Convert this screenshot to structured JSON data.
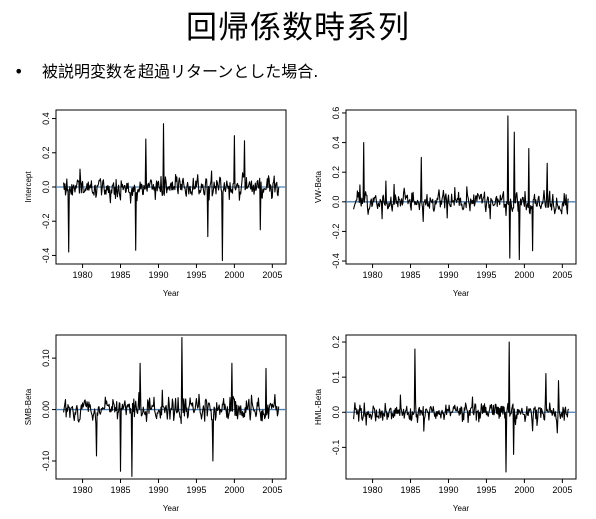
{
  "slide": {
    "title": "回帰係数時系列",
    "bullet_symbol": "•",
    "bullet_text": "被説明変数を超過リターンとした場合."
  },
  "chart_data": [
    {
      "type": "line",
      "ylabel": "Intercept",
      "xlabel": "Year",
      "x_range": [
        1977.5,
        2005.8
      ],
      "xlim": [
        1976.5,
        2006.8
      ],
      "ylim": [
        -0.45,
        0.45
      ],
      "xticks": [
        1980,
        1985,
        1990,
        1995,
        2000,
        2005
      ],
      "yticks": [
        -0.4,
        -0.2,
        0.0,
        0.2,
        0.4
      ],
      "ytick_labels": [
        "-0.4",
        "-0.2",
        "0.0",
        "0.2",
        "0.4"
      ],
      "zero_line": 0.0,
      "zero_line_color": "#4f7fb0",
      "typical_amplitude": 0.09,
      "seed": 11,
      "spikes": [
        {
          "x": 1978.2,
          "y": -0.38
        },
        {
          "x": 1987.0,
          "y": -0.37
        },
        {
          "x": 1988.3,
          "y": 0.28
        },
        {
          "x": 1990.7,
          "y": 0.37
        },
        {
          "x": 1996.5,
          "y": -0.29
        },
        {
          "x": 1998.4,
          "y": -0.43
        },
        {
          "x": 2000.0,
          "y": 0.3
        },
        {
          "x": 2001.3,
          "y": 0.27
        },
        {
          "x": 2003.4,
          "y": -0.25
        }
      ]
    },
    {
      "type": "line",
      "ylabel": "VW-Beta",
      "xlabel": "Year",
      "x_range": [
        1977.5,
        2005.8
      ],
      "xlim": [
        1976.5,
        2006.8
      ],
      "ylim": [
        -0.42,
        0.62
      ],
      "xticks": [
        1980,
        1985,
        1990,
        1995,
        2000,
        2005
      ],
      "yticks": [
        -0.4,
        -0.2,
        0.0,
        0.2,
        0.4,
        0.6
      ],
      "ytick_labels": [
        "-0.4",
        "-0.2",
        "0.0",
        "0.2",
        "0.4",
        "0.6"
      ],
      "zero_line": 0.0,
      "zero_line_color": "#4f7fb0",
      "typical_amplitude": 0.1,
      "seed": 23,
      "spikes": [
        {
          "x": 1978.8,
          "y": 0.4
        },
        {
          "x": 1986.4,
          "y": 0.3
        },
        {
          "x": 1997.8,
          "y": 0.58
        },
        {
          "x": 1998.1,
          "y": -0.38
        },
        {
          "x": 1998.7,
          "y": 0.47
        },
        {
          "x": 1999.3,
          "y": -0.39
        },
        {
          "x": 2000.6,
          "y": 0.36
        },
        {
          "x": 2001.1,
          "y": -0.33
        },
        {
          "x": 2003.0,
          "y": 0.26
        }
      ]
    },
    {
      "type": "line",
      "ylabel": "SMB-Beta",
      "xlabel": "Year",
      "x_range": [
        1977.5,
        2005.8
      ],
      "xlim": [
        1976.5,
        2006.8
      ],
      "ylim": [
        -0.135,
        0.145
      ],
      "xticks": [
        1980,
        1985,
        1990,
        1995,
        2000,
        2005
      ],
      "yticks": [
        -0.1,
        0.0,
        0.1
      ],
      "ytick_labels": [
        "-0.10",
        "0.00",
        "0.10"
      ],
      "zero_line": 0.0,
      "zero_line_color": "#4f7fb0",
      "typical_amplitude": 0.035,
      "seed": 37,
      "spikes": [
        {
          "x": 1981.8,
          "y": -0.09
        },
        {
          "x": 1985.0,
          "y": -0.12
        },
        {
          "x": 1986.5,
          "y": -0.13
        },
        {
          "x": 1987.6,
          "y": 0.09
        },
        {
          "x": 1993.1,
          "y": 0.14
        },
        {
          "x": 1997.2,
          "y": -0.1
        },
        {
          "x": 1999.7,
          "y": 0.09
        },
        {
          "x": 2004.2,
          "y": 0.08
        }
      ]
    },
    {
      "type": "line",
      "ylabel": "HML-Beta",
      "xlabel": "Year",
      "x_range": [
        1977.5,
        2005.8
      ],
      "xlim": [
        1976.5,
        2006.8
      ],
      "ylim": [
        -0.19,
        0.22
      ],
      "xticks": [
        1980,
        1985,
        1990,
        1995,
        2000,
        2005
      ],
      "yticks": [
        -0.1,
        0.0,
        0.1,
        0.2
      ],
      "ytick_labels": [
        "-0.1",
        "0.0",
        "0.1",
        "0.2"
      ],
      "zero_line": 0.0,
      "zero_line_color": "#4f7fb0",
      "typical_amplitude": 0.035,
      "seed": 53,
      "spikes": [
        {
          "x": 1985.6,
          "y": 0.18
        },
        {
          "x": 1997.6,
          "y": -0.17
        },
        {
          "x": 1998.0,
          "y": 0.2
        },
        {
          "x": 1998.6,
          "y": -0.12
        },
        {
          "x": 2002.8,
          "y": 0.11
        },
        {
          "x": 2004.5,
          "y": 0.09
        }
      ]
    }
  ]
}
